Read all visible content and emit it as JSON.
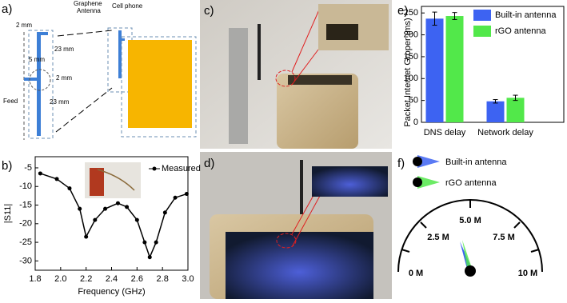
{
  "panels": {
    "a": {
      "label": "a)",
      "texts": [
        "2 mm",
        "5 mm",
        "23 mm",
        "2 mm",
        "23 mm",
        "Feed"
      ],
      "antenna": [
        "Graphene",
        "Antenna"
      ],
      "phone": "Cell phone"
    },
    "b": {
      "label": "b)"
    },
    "c": {
      "label": "c)"
    },
    "d": {
      "label": "d)"
    },
    "e": {
      "label": "e)"
    },
    "f": {
      "label": "f)",
      "legend": [
        "Built-in antenna",
        "rGO antenna"
      ],
      "gauge_labels": [
        "0 M",
        "2.5 M",
        "5.0 M",
        "7.5 M",
        "10 M"
      ]
    }
  },
  "chart_data": [
    {
      "type": "line",
      "x_label": "Frequency (GHz)",
      "y_label": "|S11|",
      "x": [
        1.84,
        1.97,
        2.07,
        2.15,
        2.2,
        2.27,
        2.35,
        2.45,
        2.52,
        2.6,
        2.66,
        2.7,
        2.75,
        2.82,
        2.9,
        2.99
      ],
      "series": [
        {
          "name": "Measured",
          "color": "#000000",
          "values": [
            -6.5,
            -8,
            -10.5,
            -16,
            -23.5,
            -19,
            -16,
            -14.5,
            -15.5,
            -19,
            -25,
            -29,
            -25,
            -17,
            -13,
            -12
          ]
        }
      ],
      "xlim": [
        1.8,
        3.0
      ],
      "xticks": [
        1.8,
        {
          "value": 2.0,
          "label": "2.0"
        },
        2.2,
        2.4,
        2.6,
        2.8,
        {
          "value": 3.0,
          "label": "3.0"
        }
      ],
      "ylim": [
        -32.5,
        -2
      ],
      "yticks": [
        -5,
        -10,
        -15,
        -20,
        -25,
        -30
      ]
    },
    {
      "type": "bar",
      "y_label": "Packet Internet Groper (ms)",
      "categories": [
        "DNS delay",
        "Network delay"
      ],
      "series": [
        {
          "name": "Built-in antenna",
          "color": "#3d63f2",
          "values": [
            237,
            48
          ],
          "errors": [
            15,
            4
          ]
        },
        {
          "name": "rGO antenna",
          "color": "#52e84a",
          "values": [
            243,
            56
          ],
          "errors": [
            8,
            6
          ]
        }
      ],
      "ylim": [
        0,
        265
      ],
      "yticks": [
        0,
        50,
        100,
        150,
        200,
        250
      ]
    }
  ]
}
